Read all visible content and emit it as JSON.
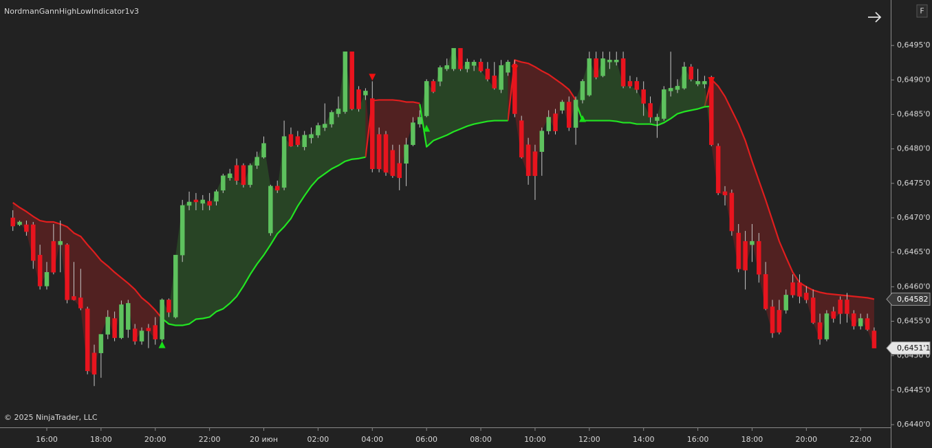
{
  "chart_data": {
    "type": "candlestick",
    "title": "NordmanGannHighLowIndicator1v3",
    "copyright": "© 2025 NinjaTrader, LLC",
    "button_label": "F",
    "categories": [
      null,
      null,
      null,
      null,
      null,
      "16:00",
      null,
      null,
      null,
      null,
      null,
      null,
      null,
      "18:00",
      null,
      null,
      null,
      null,
      null,
      null,
      null,
      "20:00",
      null,
      null,
      null,
      null,
      null,
      null,
      null,
      "22:00",
      null,
      null,
      null,
      null,
      null,
      null,
      null,
      "20 июн",
      null,
      null,
      null,
      null,
      null,
      null,
      null,
      "02:00",
      null,
      null,
      null,
      null,
      null,
      null,
      null,
      "04:00",
      null,
      null,
      null,
      null,
      null,
      null,
      null,
      "06:00",
      null,
      null,
      null,
      null,
      null,
      null,
      null,
      "08:00",
      null,
      null,
      null,
      null,
      null,
      null,
      null,
      "10:00",
      null,
      null,
      null,
      null,
      null,
      null,
      null,
      "12:00",
      null,
      null,
      null,
      null,
      null,
      null,
      null,
      "14:00",
      null,
      null,
      null,
      null,
      null,
      null,
      null,
      "16:00",
      null,
      null,
      null,
      null,
      null,
      null,
      null,
      "18:00",
      null,
      null,
      null,
      null,
      null,
      null,
      null,
      "20:00",
      null,
      null,
      null,
      null,
      null,
      null,
      null,
      "22:00",
      null,
      null
    ],
    "open": [
      0.647,
      0.6469,
      0.6469,
      0.6469,
      0.64646,
      0.64601,
      0.64666,
      0.64661,
      0.64661,
      0.64586,
      0.64584,
      0.64568,
      0.64504,
      0.64504,
      0.64531,
      0.64554,
      0.64526,
      0.64538,
      0.64539,
      0.64521,
      0.6454,
      0.64544,
      0.64524,
      0.64581,
      0.64556,
      0.64646,
      0.64718,
      0.64726,
      0.64721,
      0.64724,
      0.64724,
      0.6474,
      0.64758,
      0.64776,
      0.64776,
      0.64748,
      0.64776,
      0.64788,
      0.64678,
      0.64746,
      0.64744,
      0.64821,
      0.64818,
      0.64803,
      0.64816,
      0.6482,
      0.64831,
      0.64836,
      0.64851,
      0.64854,
      0.64941,
      0.64886,
      0.64878,
      0.64873,
      0.64821,
      0.64821,
      0.64798,
      0.64779,
      0.64779,
      0.64806,
      0.64836,
      0.64848,
      0.64898,
      0.64898,
      0.64916,
      0.64916,
      0.64946,
      0.64916,
      0.64921,
      0.64926,
      0.64916,
      0.64906,
      0.64886,
      0.64911,
      0.64923,
      0.64841,
      0.64806,
      0.64796,
      0.64796,
      0.64826,
      0.64851,
      0.64856,
      0.64868,
      0.64831,
      0.64871,
      0.64878,
      0.64931,
      0.64906,
      0.64926,
      0.64926,
      0.64931,
      0.64898,
      0.64898,
      0.64886,
      0.64866,
      0.64841,
      0.64844,
      0.64884,
      0.64886,
      0.64888,
      0.64919,
      0.64894,
      0.64894,
      0.64904,
      0.64804,
      0.64738,
      0.64736,
      0.64678,
      0.64666,
      0.64661,
      0.64666,
      0.64618,
      0.64571,
      0.64566,
      0.64566,
      0.64606,
      0.64606,
      0.64591,
      0.64584,
      0.64548,
      0.64524,
      0.64564,
      0.64581,
      0.64581,
      0.64561,
      0.64543,
      0.64554,
      0.64536
    ],
    "high": [
      0.64711,
      0.64696,
      0.64696,
      0.64694,
      0.64661,
      0.64636,
      0.64691,
      0.64696,
      0.64663,
      0.64636,
      0.64626,
      0.64571,
      0.64516,
      0.64531,
      0.64566,
      0.64564,
      0.6458,
      0.64581,
      0.64546,
      0.64541,
      0.64546,
      0.64556,
      0.64583,
      0.64583,
      0.64646,
      0.64726,
      0.64738,
      0.64736,
      0.64733,
      0.64736,
      0.64741,
      0.64764,
      0.64771,
      0.64786,
      0.64779,
      0.64779,
      0.64796,
      0.64818,
      0.64748,
      0.64754,
      0.64841,
      0.64831,
      0.64826,
      0.64826,
      0.64831,
      0.64838,
      0.64866,
      0.64856,
      0.64876,
      0.64941,
      0.64941,
      0.64891,
      0.64888,
      0.64898,
      0.64831,
      0.64826,
      0.64806,
      0.64806,
      0.64816,
      0.64846,
      0.64856,
      0.64901,
      0.64901,
      0.64921,
      0.64931,
      0.64946,
      0.64946,
      0.64931,
      0.64929,
      0.64931,
      0.64926,
      0.64926,
      0.64929,
      0.64929,
      0.64929,
      0.64848,
      0.64816,
      0.64806,
      0.64831,
      0.64856,
      0.64858,
      0.64871,
      0.64876,
      0.64876,
      0.64901,
      0.64941,
      0.64941,
      0.64941,
      0.64941,
      0.64941,
      0.64941,
      0.64906,
      0.64904,
      0.64898,
      0.64876,
      0.64851,
      0.64891,
      0.64941,
      0.64901,
      0.64926,
      0.64923,
      0.64916,
      0.64906,
      0.64906,
      0.64808,
      0.64746,
      0.64741,
      0.64691,
      0.64681,
      0.64691,
      0.64678,
      0.64636,
      0.64581,
      0.64581,
      0.64596,
      0.64618,
      0.64618,
      0.64601,
      0.64596,
      0.64561,
      0.64566,
      0.64571,
      0.64586,
      0.64591,
      0.64566,
      0.64561,
      0.64561,
      0.64541
    ],
    "low": [
      0.64681,
      0.64688,
      0.64674,
      0.64626,
      0.64596,
      0.64596,
      0.64618,
      0.64621,
      0.64576,
      0.6458,
      0.64566,
      0.64473,
      0.64456,
      0.64468,
      0.64524,
      0.64521,
      0.64524,
      0.64526,
      0.64516,
      0.64516,
      0.64511,
      0.64516,
      0.64521,
      0.64556,
      0.64554,
      0.64636,
      0.64711,
      0.64711,
      0.64711,
      0.64711,
      0.64718,
      0.64736,
      0.64754,
      0.64748,
      0.64744,
      0.64744,
      0.64771,
      0.64786,
      0.64674,
      0.64736,
      0.6474,
      0.64803,
      0.64803,
      0.64798,
      0.64808,
      0.64816,
      0.64826,
      0.64831,
      0.64846,
      0.64851,
      0.64856,
      0.64854,
      0.64871,
      0.64766,
      0.64766,
      0.64761,
      0.64758,
      0.6474,
      0.64746,
      0.64804,
      0.64831,
      0.64846,
      0.64881,
      0.64891,
      0.64913,
      0.64913,
      0.64913,
      0.64911,
      0.64913,
      0.64911,
      0.64898,
      0.64886,
      0.64881,
      0.64906,
      0.64846,
      0.64786,
      0.64748,
      0.64726,
      0.64761,
      0.64821,
      0.64821,
      0.64851,
      0.64826,
      0.64806,
      0.64866,
      0.64876,
      0.64901,
      0.64904,
      0.64916,
      0.64921,
      0.64888,
      0.64888,
      0.64881,
      0.64848,
      0.64838,
      0.64816,
      0.64841,
      0.64876,
      0.64881,
      0.64886,
      0.64898,
      0.64891,
      0.64888,
      0.64804,
      0.64733,
      0.64718,
      0.64674,
      0.64621,
      0.64596,
      0.64636,
      0.64606,
      0.64566,
      0.64526,
      0.64531,
      0.64561,
      0.64584,
      0.64576,
      0.64576,
      0.64546,
      0.64516,
      0.64521,
      0.64548,
      0.64546,
      0.64548,
      0.64538,
      0.64538,
      0.64536,
      0.64511
    ],
    "close": [
      0.64688,
      0.64694,
      0.6468,
      0.64638,
      0.64601,
      0.64621,
      0.64621,
      0.64666,
      0.64581,
      0.64581,
      0.64569,
      0.64478,
      0.64473,
      0.64531,
      0.64556,
      0.64526,
      0.64574,
      0.64576,
      0.64521,
      0.64536,
      0.64536,
      0.64524,
      0.64581,
      0.64563,
      0.64646,
      0.64718,
      0.64723,
      0.64723,
      0.64726,
      0.64718,
      0.64738,
      0.64761,
      0.64764,
      0.64754,
      0.64748,
      0.64776,
      0.64788,
      0.64808,
      0.64746,
      0.6474,
      0.64818,
      0.64804,
      0.64806,
      0.6482,
      0.64821,
      0.64834,
      0.64836,
      0.64853,
      0.64858,
      0.64941,
      0.64858,
      0.64858,
      0.64884,
      0.64771,
      0.64771,
      0.64766,
      0.64761,
      0.64758,
      0.64806,
      0.64838,
      0.64846,
      0.64898,
      0.64883,
      0.64918,
      0.64921,
      0.64946,
      0.64916,
      0.64926,
      0.64926,
      0.64913,
      0.64901,
      0.64888,
      0.64921,
      0.64926,
      0.64851,
      0.64788,
      0.64761,
      0.64761,
      0.64826,
      0.64846,
      0.64826,
      0.64868,
      0.64831,
      0.64871,
      0.64898,
      0.64931,
      0.64904,
      0.64931,
      0.64929,
      0.64929,
      0.64891,
      0.64891,
      0.64886,
      0.64866,
      0.64846,
      0.64846,
      0.64886,
      0.64888,
      0.64891,
      0.64919,
      0.64901,
      0.64898,
      0.64898,
      0.64806,
      0.64736,
      0.64733,
      0.64681,
      0.64626,
      0.64624,
      0.64666,
      0.64618,
      0.64568,
      0.64533,
      0.64534,
      0.64588,
      0.64588,
      0.64586,
      0.64581,
      0.64548,
      0.64524,
      0.64561,
      0.64554,
      0.64561,
      0.64561,
      0.64543,
      0.64554,
      0.64538,
      0.64511
    ],
    "up_color": "#5ec25e",
    "down_color": "#e8141e",
    "wick_color": "#c8c8c8",
    "bands": [
      {
        "color": "#e01e1e",
        "fill": "rgba(120,32,32,0.55)",
        "values": [
          0.64722,
          0.64715,
          0.64709,
          0.64702,
          0.64696,
          0.64694,
          0.64694,
          0.64691,
          0.64687,
          0.64678,
          0.64673,
          0.64661,
          0.6465,
          0.64638,
          0.6463,
          0.64621,
          0.64613,
          0.64605,
          0.64596,
          0.64584,
          0.64576,
          0.64566,
          0.64554,
          null,
          null,
          null,
          null,
          null,
          null,
          null,
          null,
          null,
          null,
          null,
          null,
          null,
          null,
          null,
          null,
          null,
          null,
          null,
          null,
          null,
          null,
          null,
          null,
          null,
          null,
          null,
          null,
          null,
          0.64788,
          0.6487,
          0.64871,
          0.64871,
          0.64871,
          0.6487,
          0.64868,
          0.64868,
          0.64866,
          null,
          null,
          null,
          null,
          null,
          null,
          null,
          null,
          null,
          null,
          null,
          null,
          0.64841,
          0.64929,
          0.64926,
          0.64924,
          0.64919,
          0.64913,
          0.64908,
          0.64901,
          0.64894,
          0.64886,
          0.64871,
          null,
          null,
          null,
          null,
          null,
          null,
          null,
          null,
          null,
          null,
          null,
          null,
          null,
          null,
          null,
          null,
          null,
          null,
          0.64861,
          0.64901,
          0.64891,
          0.64876,
          0.64856,
          0.64836,
          0.64812,
          0.64782,
          0.64754,
          0.64726,
          0.64696,
          0.64666,
          0.64643,
          0.64621,
          0.64606,
          0.646,
          0.64595,
          0.64592,
          0.6459,
          0.64589,
          0.64588,
          0.64587,
          0.64586,
          0.64585,
          0.64584,
          0.64582
        ]
      },
      {
        "color": "#22e622",
        "fill": "rgba(46,96,40,0.55)",
        "values": [
          null,
          null,
          null,
          null,
          null,
          null,
          null,
          null,
          null,
          null,
          null,
          null,
          null,
          null,
          null,
          null,
          null,
          null,
          null,
          null,
          null,
          null,
          0.64554,
          0.64546,
          0.64544,
          0.64544,
          0.64546,
          0.64553,
          0.64554,
          0.64556,
          0.64564,
          0.64568,
          0.64576,
          0.64586,
          0.64601,
          0.64618,
          0.64633,
          0.64646,
          0.64661,
          0.64677,
          0.64687,
          0.64699,
          0.64717,
          0.64732,
          0.64746,
          0.64757,
          0.64764,
          0.64771,
          0.64776,
          0.64782,
          0.64785,
          0.64786,
          0.64788,
          null,
          null,
          null,
          null,
          null,
          null,
          null,
          0.64865,
          0.64803,
          0.64812,
          0.64816,
          0.6482,
          0.64825,
          0.64829,
          0.64833,
          0.64836,
          0.64838,
          0.6484,
          0.64841,
          0.64841,
          0.64841,
          null,
          null,
          null,
          null,
          null,
          null,
          null,
          null,
          null,
          0.64868,
          0.64841,
          0.64841,
          0.64841,
          0.64841,
          0.64841,
          0.6484,
          0.64838,
          0.64838,
          0.64836,
          0.64836,
          0.64836,
          0.64834,
          0.64838,
          0.64844,
          0.64851,
          0.64854,
          0.64856,
          0.64858,
          0.64861,
          0.64862,
          null,
          null,
          null,
          null,
          null,
          null,
          null,
          null,
          null,
          null,
          null,
          null,
          null,
          null,
          null,
          null,
          null,
          null,
          null,
          null,
          null,
          null,
          null,
          null
        ]
      }
    ],
    "buy_signals": [
      {
        "index": 22,
        "price": 0.64516
      },
      {
        "index": 61,
        "price": 0.6483
      },
      {
        "index": 84,
        "price": 0.64844
      }
    ],
    "sell_signals": [
      {
        "index": 53,
        "price": 0.64904
      },
      {
        "index": 74,
        "price": 0.64916
      },
      {
        "index": 103,
        "price": 0.64899
      }
    ],
    "buy_color": "#18e018",
    "sell_color": "#f01010",
    "price_labels": [
      {
        "value": 0.64582,
        "label": "0,64582",
        "background": "#3a3a3a",
        "text_color": "#ffffff"
      },
      {
        "value": 0.64511,
        "label": "0,6451'1",
        "background": "#e6e6e6",
        "text_color": "#111111"
      }
    ],
    "ylim": [
      0.64396,
      0.65011
    ],
    "yticks": [
      {
        "value": 0.644,
        "label": "0,6440'0"
      },
      {
        "value": 0.6445,
        "label": "0,6445'0"
      },
      {
        "value": 0.645,
        "label": "0,6450'0"
      },
      {
        "value": 0.6455,
        "label": "0,6455'0"
      },
      {
        "value": 0.646,
        "label": "0,6460'0"
      },
      {
        "value": 0.6465,
        "label": "0,6465'0"
      },
      {
        "value": 0.647,
        "label": "0,6470'0"
      },
      {
        "value": 0.6475,
        "label": "0,6475'0"
      },
      {
        "value": 0.648,
        "label": "0,6480'0"
      },
      {
        "value": 0.6485,
        "label": "0,6485'0"
      },
      {
        "value": 0.649,
        "label": "0,6490'0"
      },
      {
        "value": 0.6495,
        "label": "0,6495'0"
      }
    ]
  }
}
